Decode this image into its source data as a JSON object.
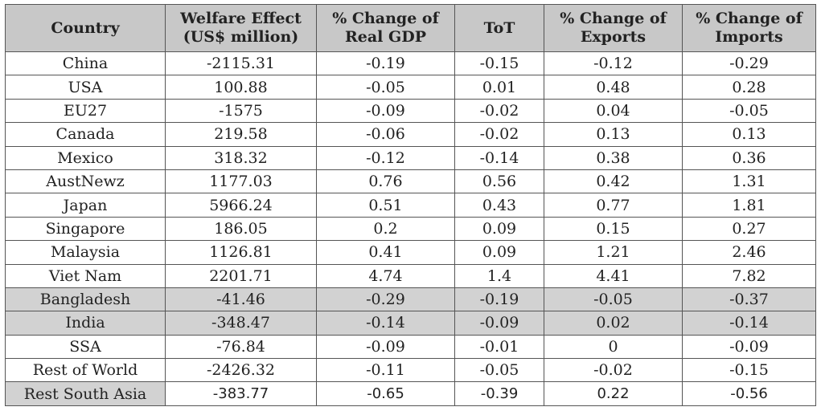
{
  "table": {
    "headers": [
      "Country",
      "Welfare Effect (US$ million)",
      "% Change of Real GDP",
      "ToT",
      "% Change of Exports",
      "% Change of Imports"
    ],
    "rows": [
      [
        "China",
        "-2115.31",
        "-0.19",
        "-0.15",
        "-0.12",
        "-0.29"
      ],
      [
        "USA",
        "100.88",
        "-0.05",
        "0.01",
        "0.48",
        "0.28"
      ],
      [
        "EU27",
        "-1575",
        "-0.09",
        "-0.02",
        "0.04",
        "-0.05"
      ],
      [
        "Canada",
        "219.58",
        "-0.06",
        "-0.02",
        "0.13",
        "0.13"
      ],
      [
        "Mexico",
        "318.32",
        "-0.12",
        "-0.14",
        "0.38",
        "0.36"
      ],
      [
        "AustNewz",
        "1177.03",
        "0.76",
        "0.56",
        "0.42",
        "1.31"
      ],
      [
        "Japan",
        "5966.24",
        "0.51",
        "0.43",
        "0.77",
        "1.81"
      ],
      [
        "Singapore",
        "186.05",
        "0.2",
        "0.09",
        "0.15",
        "0.27"
      ],
      [
        "Malaysia",
        "1126.81",
        "0.41",
        "0.09",
        "1.21",
        "2.46"
      ],
      [
        "Viet Nam",
        "2201.71",
        "4.74",
        "1.4",
        "4.41",
        "7.82"
      ],
      [
        "Bangladesh",
        "-41.46",
        "-0.29",
        "-0.19",
        "-0.05",
        "-0.37"
      ],
      [
        "India",
        "-348.47",
        "-0.14",
        "-0.09",
        "0.02",
        "-0.14"
      ],
      [
        "SSA",
        "-76.84",
        "-0.09",
        "-0.01",
        "0",
        "-0.09"
      ],
      [
        "Rest of World",
        "-2426.32",
        "-0.11",
        "-0.05",
        "-0.02",
        "-0.15"
      ],
      [
        "Rest South Asia",
        "-383.77",
        "-0.65",
        "-0.39",
        "0.22",
        "-0.56"
      ]
    ],
    "shaded_rows": [
      "Bangladesh",
      "India"
    ],
    "header_bg": "#c8c8c8",
    "shade_bg": "#d2d2d2"
  }
}
